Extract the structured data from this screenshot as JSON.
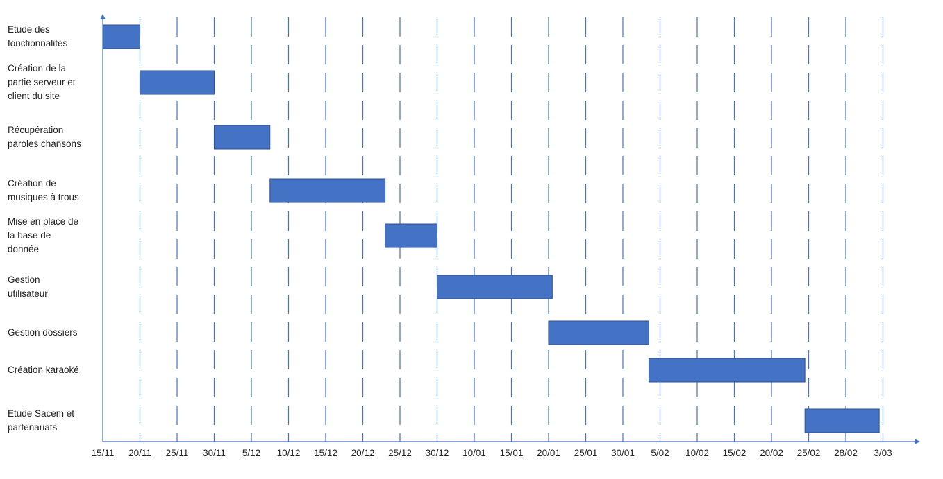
{
  "chart_data": {
    "type": "gantt",
    "title": "",
    "xlabel": "",
    "ylabel": "",
    "tick_labels": [
      "15/11",
      "20/11",
      "25/11",
      "30/11",
      "5/12",
      "10/12",
      "15/12",
      "20/12",
      "25/12",
      "30/12",
      "10/01",
      "15/01",
      "20/01",
      "25/01",
      "30/01",
      "5/02",
      "10/02",
      "15/02",
      "20/02",
      "25/02",
      "28/02",
      "3/03"
    ],
    "tasks": [
      {
        "name": "Etude des\nfonctionnalités",
        "start_tick": 0,
        "end_tick": 1
      },
      {
        "name": "Création de la\npartie serveur et\nclient du site",
        "start_tick": 1,
        "end_tick": 3
      },
      {
        "name": "Récupération\nparoles chansons",
        "start_tick": 3,
        "end_tick": 4.5
      },
      {
        "name": "Création de\nmusiques à trous",
        "start_tick": 4.5,
        "end_tick": 7.6
      },
      {
        "name": "Mise en place de\nla base de\ndonnée",
        "start_tick": 7.6,
        "end_tick": 9
      },
      {
        "name": "Gestion\nutilisateur",
        "start_tick": 9,
        "end_tick": 12.1
      },
      {
        "name": "Gestion dossiers",
        "start_tick": 12,
        "end_tick": 14.7
      },
      {
        "name": "Création karaoké",
        "start_tick": 14.7,
        "end_tick": 18.9
      },
      {
        "name": "Etude Sacem et\npartenariats",
        "start_tick": 18.9,
        "end_tick": 20.9
      }
    ],
    "grid": "vertical-dashed",
    "bar_color": "#4472C4",
    "axis_color": "#4472C4"
  }
}
